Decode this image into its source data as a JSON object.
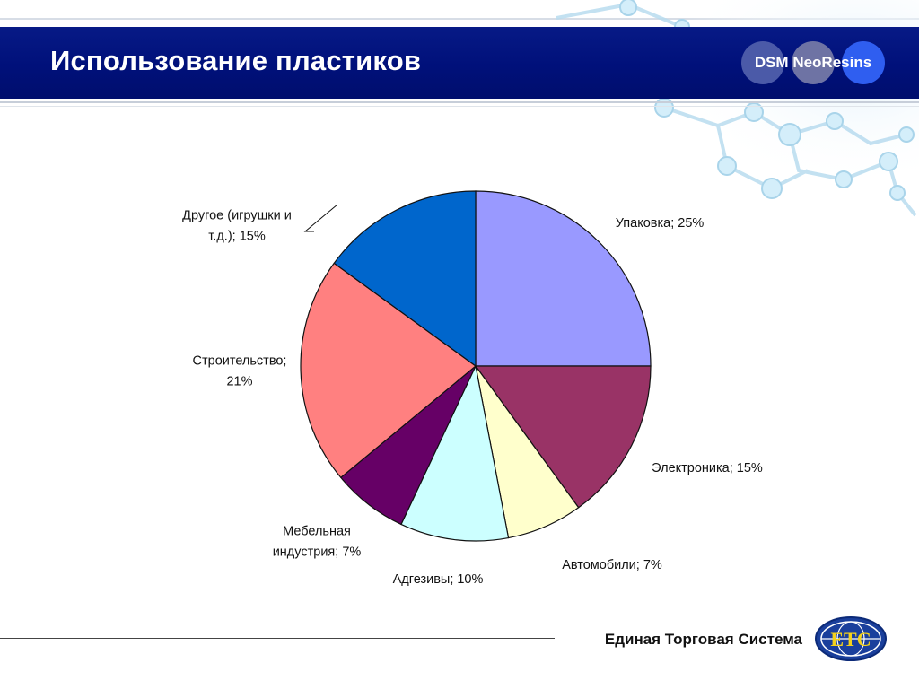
{
  "header": {
    "title": "Использование пластиков",
    "brand": "DSM NeoResins"
  },
  "footer": {
    "text": "Единая Торговая Система",
    "logo_letters": "ЕТС"
  },
  "colors": {
    "banner": "#00107a",
    "upakovka": "#9999ff",
    "elektronika": "#993366",
    "avtomobili": "#ffffcc",
    "adgezivy": "#ccffff",
    "mebel": "#660066",
    "stroitelstvo": "#ff8080",
    "drugoe": "#0066cc"
  },
  "chart_data": {
    "type": "pie",
    "title": "",
    "start_angle_deg": 0,
    "direction": "clockwise",
    "slices": [
      {
        "key": "upakovka",
        "label_lines": [
          "Упаковка; 25%"
        ],
        "value": 25,
        "color": "#9999ff"
      },
      {
        "key": "elektronika",
        "label_lines": [
          "Электроника; 15%"
        ],
        "value": 15,
        "color": "#993366"
      },
      {
        "key": "avtomobili",
        "label_lines": [
          "Автомобили; 7%"
        ],
        "value": 7,
        "color": "#ffffcc"
      },
      {
        "key": "adgezivy",
        "label_lines": [
          "Адгезивы; 10%"
        ],
        "value": 10,
        "color": "#ccffff"
      },
      {
        "key": "mebel",
        "label_lines": [
          "Мебельная",
          "индустрия; 7%"
        ],
        "value": 7,
        "color": "#660066"
      },
      {
        "key": "stroitelstvo",
        "label_lines": [
          "Строительство;",
          "21%"
        ],
        "value": 21,
        "color": "#ff8080"
      },
      {
        "key": "drugoe",
        "label_lines": [
          "Другое (игрушки и",
          "т.д.); 15%"
        ],
        "value": 15,
        "color": "#0066cc"
      }
    ]
  }
}
